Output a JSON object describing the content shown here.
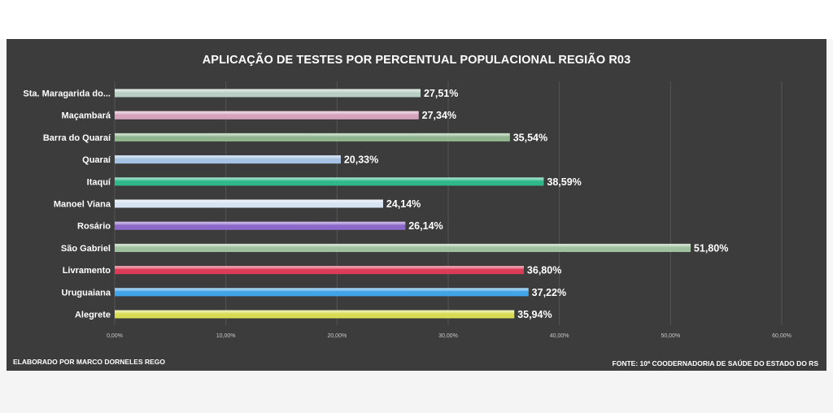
{
  "chart_data": {
    "type": "bar",
    "orientation": "horizontal",
    "title": "APLICAÇÃO DE TESTES POR PERCENTUAL POPULACIONAL REGIÃO R03",
    "categories": [
      "Sta. Maragarida do...",
      "Maçambará",
      "Barra do Quaraí",
      "Quaraí",
      "Itaquí",
      "Manoel Viana",
      "Rosário",
      "São Gabriel",
      "Livramento",
      "Uruguaiana",
      "Alegrete"
    ],
    "values": [
      27.51,
      27.34,
      35.54,
      20.33,
      38.59,
      24.14,
      26.14,
      51.8,
      36.8,
      37.22,
      35.94
    ],
    "value_labels": [
      "27,51%",
      "27,34%",
      "35,54%",
      "20,33%",
      "38,59%",
      "24,14%",
      "26,14%",
      "51,80%",
      "36,80%",
      "37,22%",
      "35,94%"
    ],
    "bar_colors": [
      "#b9cfc4",
      "#d6a3bd",
      "#8fb48e",
      "#a7c3e3",
      "#2fb88a",
      "#d7e3f0",
      "#8b68c9",
      "#9fc19f",
      "#dc3b57",
      "#42a3e6",
      "#d8dc54"
    ],
    "xlim": [
      0,
      60
    ],
    "x_ticks": [
      0,
      10,
      20,
      30,
      40,
      50,
      60
    ],
    "x_tick_labels": [
      "0,00%",
      "10,00%",
      "20,00%",
      "30,00%",
      "40,00%",
      "50,00%",
      "60,00%"
    ],
    "grid": true,
    "legend": "none"
  },
  "footer": {
    "left": "ELABORADO POR MARCO DORNELES REGO",
    "right": "FONTE: 10ª COODERNADORIA  DE SAÚDE DO ESTADO DO RS"
  },
  "colors": {
    "background": "#3c3c3c",
    "gridline": "#555555",
    "text": "#ffffff"
  }
}
